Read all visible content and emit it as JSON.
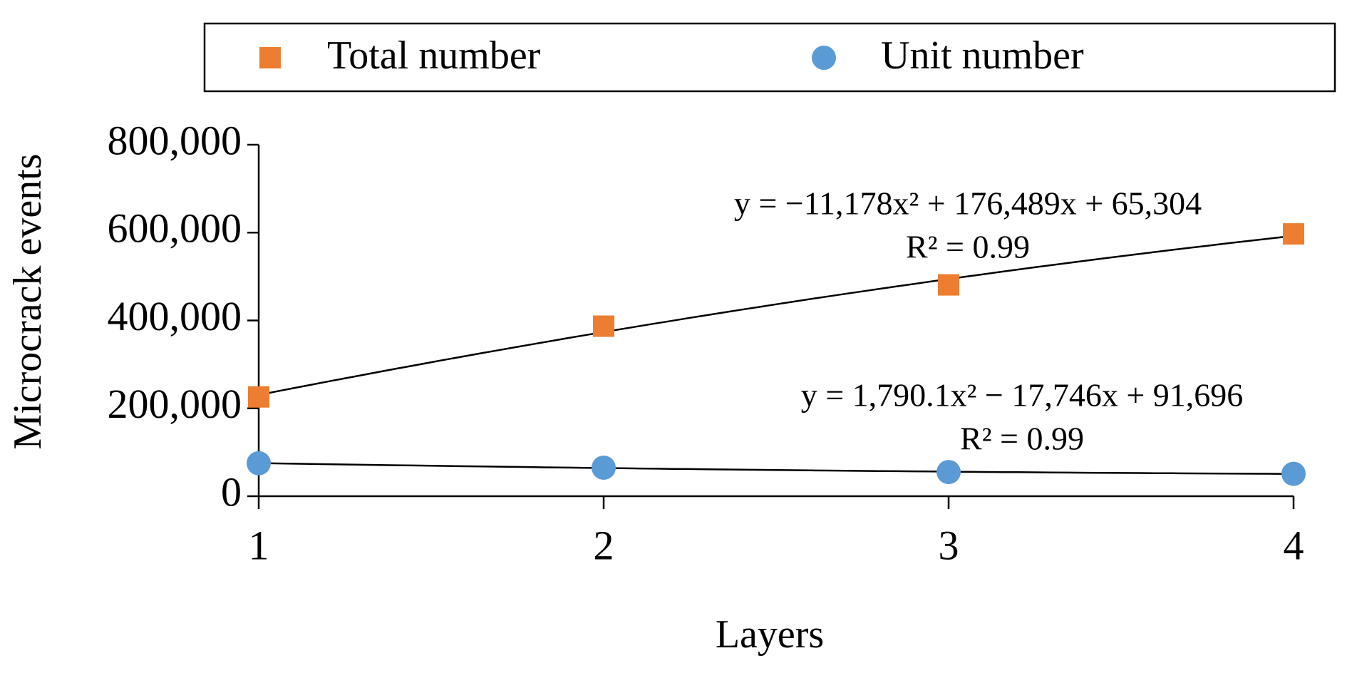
{
  "chart_data": {
    "type": "scatter",
    "x_label": "Layers",
    "y_label": "Microcrack events",
    "x": [
      1,
      2,
      3,
      4
    ],
    "series": [
      {
        "name": "Total number",
        "color": "#ed7d31",
        "marker": "square",
        "values": [
          226000,
          387000,
          481000,
          597000
        ]
      },
      {
        "name": "Unit number",
        "color": "#5b9bd5",
        "marker": "circle",
        "values": [
          75000,
          65000,
          55000,
          51000
        ]
      }
    ],
    "trendline": "poly2",
    "annotations": [
      "y = −11,178x² + 176,489x + 65,304",
      "R² = 0.99",
      "y = 1,790.1x² − 17,746x + 91,696",
      "R² = 0.99"
    ],
    "xlim": [
      1,
      4
    ],
    "xticks": [
      1,
      2,
      3,
      4
    ],
    "ylim": [
      0,
      800000
    ],
    "yticks": [
      0,
      {
        "value": 200000,
        "label": "200,000"
      },
      {
        "value": 400000,
        "label": "400,000"
      },
      {
        "value": 600000,
        "label": "600,000"
      },
      {
        "value": 800000,
        "label": "800,000"
      }
    ],
    "legend": "top"
  }
}
